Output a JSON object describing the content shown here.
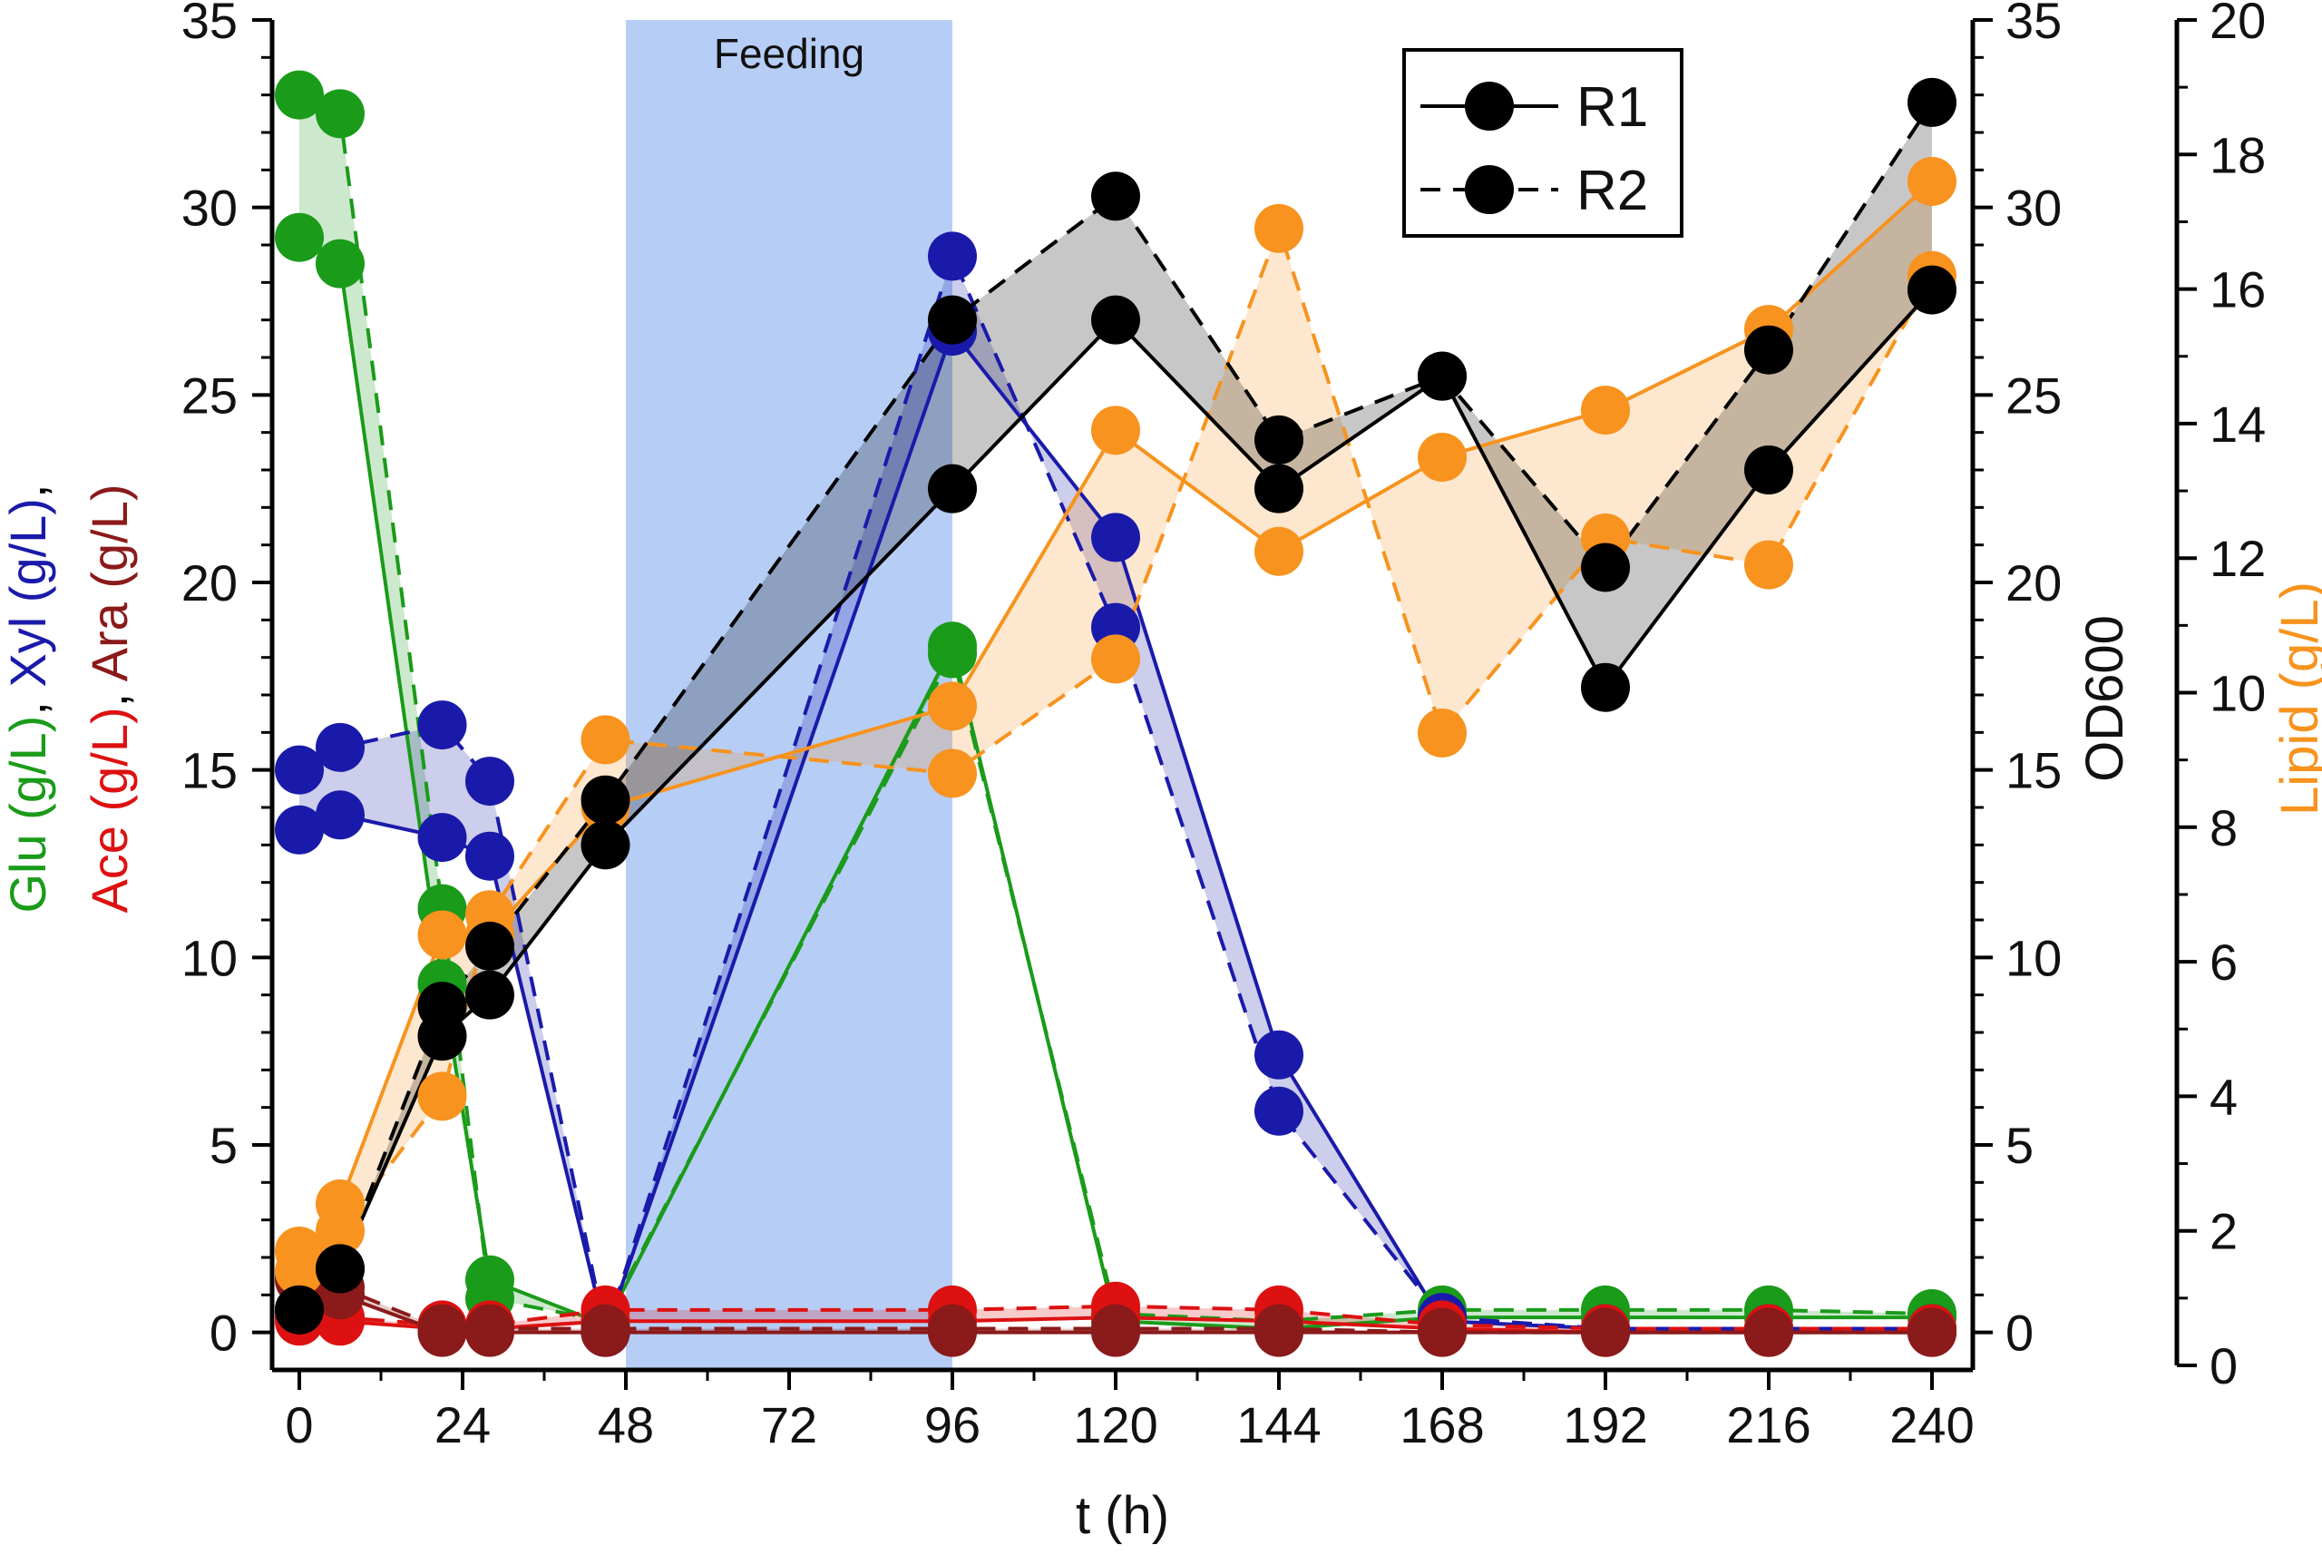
{
  "chart_data": {
    "type": "line",
    "xlabel": "t (h)",
    "xticks": [
      0,
      24,
      48,
      72,
      96,
      120,
      144,
      168,
      192,
      216,
      240
    ],
    "xlim": [
      -4,
      246
    ],
    "left_axis": {
      "label_parts": [
        {
          "text": "Glu (g/L)",
          "color": "#1a9b1a"
        },
        {
          "text": ", ",
          "color": "#000000"
        },
        {
          "text": "Xyl (g/L)",
          "color": "#1a1aaa"
        },
        {
          "text": ",",
          "color": "#000000"
        }
      ],
      "label_parts_2": [
        {
          "text": "Ace (g/L)",
          "color": "#dd1111"
        },
        {
          "text": ", ",
          "color": "#000000"
        },
        {
          "text": "Ara (g/L)",
          "color": "#8b1a1a"
        }
      ],
      "ylim": [
        -1,
        35
      ],
      "ticks": [
        0,
        5,
        10,
        15,
        20,
        25,
        30,
        35
      ]
    },
    "od_axis": {
      "label": "OD600",
      "ylim": [
        0,
        35
      ],
      "ticks": [
        0,
        5,
        10,
        15,
        20,
        25,
        30,
        35
      ]
    },
    "lipid_axis": {
      "label": "Lipid (g/L)",
      "ylim": [
        0,
        20
      ],
      "ticks": [
        0,
        2,
        4,
        6,
        8,
        10,
        12,
        14,
        16,
        18,
        20
      ],
      "color": "#f7931e"
    },
    "feeding": {
      "label": "Feeding",
      "x_start": 48,
      "x_end": 96
    },
    "legend": {
      "position": "top-right",
      "entries": [
        {
          "label": "R1",
          "dash": false
        },
        {
          "label": "R2",
          "dash": true
        }
      ]
    },
    "colors": {
      "glucose": "#1a9b1a",
      "xylose": "#1a1aaa",
      "acetate": "#dd1111",
      "arabinose": "#8b1a1a",
      "od600": "#000000",
      "lipid": "#f7931e",
      "feeding_band": "#a9c6f5"
    },
    "series": [
      {
        "key": "glucose",
        "axis": "left",
        "r1": {
          "x": [
            0,
            6,
            21,
            28,
            45,
            96,
            120,
            144,
            168,
            192,
            216,
            240
          ],
          "y": [
            29.2,
            28.5,
            9.3,
            1.4,
            0.2,
            18.3,
            0.3,
            0.1,
            0.4,
            0.4,
            0.4,
            0.4
          ]
        },
        "r2": {
          "x": [
            0,
            6,
            21,
            28,
            45,
            96,
            120,
            144,
            168,
            192,
            216,
            240
          ],
          "y": [
            33.0,
            32.5,
            11.3,
            0.9,
            0.3,
            18.1,
            0.5,
            0.3,
            0.6,
            0.6,
            0.6,
            0.5
          ]
        }
      },
      {
        "key": "xylose",
        "axis": "left",
        "r1": {
          "x": [
            0,
            6,
            21,
            28,
            45,
            96,
            120,
            144,
            168,
            192,
            216,
            240
          ],
          "y": [
            13.4,
            13.8,
            13.2,
            12.7,
            0.0,
            26.7,
            21.2,
            7.4,
            0.3,
            0.1,
            0.1,
            0.1
          ]
        },
        "r2": {
          "x": [
            0,
            6,
            21,
            28,
            45,
            96,
            120,
            144,
            168,
            192,
            216,
            240
          ],
          "y": [
            15.0,
            15.6,
            16.2,
            14.7,
            0.0,
            28.7,
            18.8,
            5.9,
            0.4,
            0.1,
            0.1,
            0.1
          ]
        }
      },
      {
        "key": "acetate",
        "axis": "left",
        "r1": {
          "x": [
            0,
            6,
            21,
            28,
            45,
            96,
            120,
            144,
            168,
            192,
            216,
            240
          ],
          "y": [
            0.3,
            0.3,
            0.1,
            0.1,
            0.3,
            0.3,
            0.4,
            0.3,
            0.1,
            0.0,
            0.0,
            0.0
          ]
        },
        "r2": {
          "x": [
            0,
            6,
            21,
            28,
            45,
            96,
            120,
            144,
            168,
            192,
            216,
            240
          ],
          "y": [
            0.4,
            0.4,
            0.2,
            0.2,
            0.6,
            0.6,
            0.7,
            0.6,
            0.2,
            0.1,
            0.1,
            0.1
          ]
        }
      },
      {
        "key": "arabinose",
        "axis": "left",
        "r1": {
          "x": [
            0,
            6,
            21,
            28,
            45,
            96,
            120,
            144,
            168,
            192,
            216,
            240
          ],
          "y": [
            1.4,
            1.0,
            0.0,
            0.0,
            0.0,
            0.0,
            0.0,
            0.0,
            0.0,
            0.0,
            0.0,
            0.0
          ]
        },
        "r2": {
          "x": [
            0,
            6,
            21,
            28,
            45,
            96,
            120,
            144,
            168,
            192,
            216,
            240
          ],
          "y": [
            1.5,
            1.2,
            0.1,
            0.1,
            0.1,
            0.1,
            0.1,
            0.1,
            0.0,
            0.0,
            0.0,
            0.0
          ]
        }
      },
      {
        "key": "lipid",
        "axis": "lipid",
        "r1": {
          "x": [
            0,
            6,
            21,
            28,
            45,
            96,
            120,
            144,
            168,
            192,
            216,
            240
          ],
          "y": [
            1.4,
            2.4,
            6.4,
            6.4,
            8.3,
            9.8,
            13.9,
            12.1,
            13.5,
            14.2,
            15.4,
            17.6
          ]
        },
        "r2": {
          "x": [
            0,
            6,
            21,
            28,
            45,
            96,
            120,
            144,
            168,
            192,
            216,
            240
          ],
          "y": [
            1.7,
            2.0,
            4.0,
            6.7,
            9.3,
            8.8,
            10.5,
            16.9,
            9.4,
            12.3,
            11.9,
            16.2
          ]
        }
      },
      {
        "key": "od600",
        "axis": "od",
        "r1": {
          "x": [
            0,
            6,
            21,
            28,
            45,
            96,
            120,
            144,
            168,
            192,
            216,
            240
          ],
          "y": [
            0.6,
            1.7,
            7.9,
            9.0,
            13.0,
            22.5,
            27.0,
            22.5,
            25.5,
            17.2,
            23.0,
            27.8
          ]
        },
        "r2": {
          "x": [
            0,
            6,
            21,
            28,
            45,
            96,
            120,
            144,
            168,
            192,
            216,
            240
          ],
          "y": [
            0.6,
            1.7,
            8.7,
            10.3,
            14.2,
            27.0,
            30.3,
            23.8,
            25.5,
            20.4,
            26.2,
            32.8
          ]
        }
      }
    ]
  }
}
